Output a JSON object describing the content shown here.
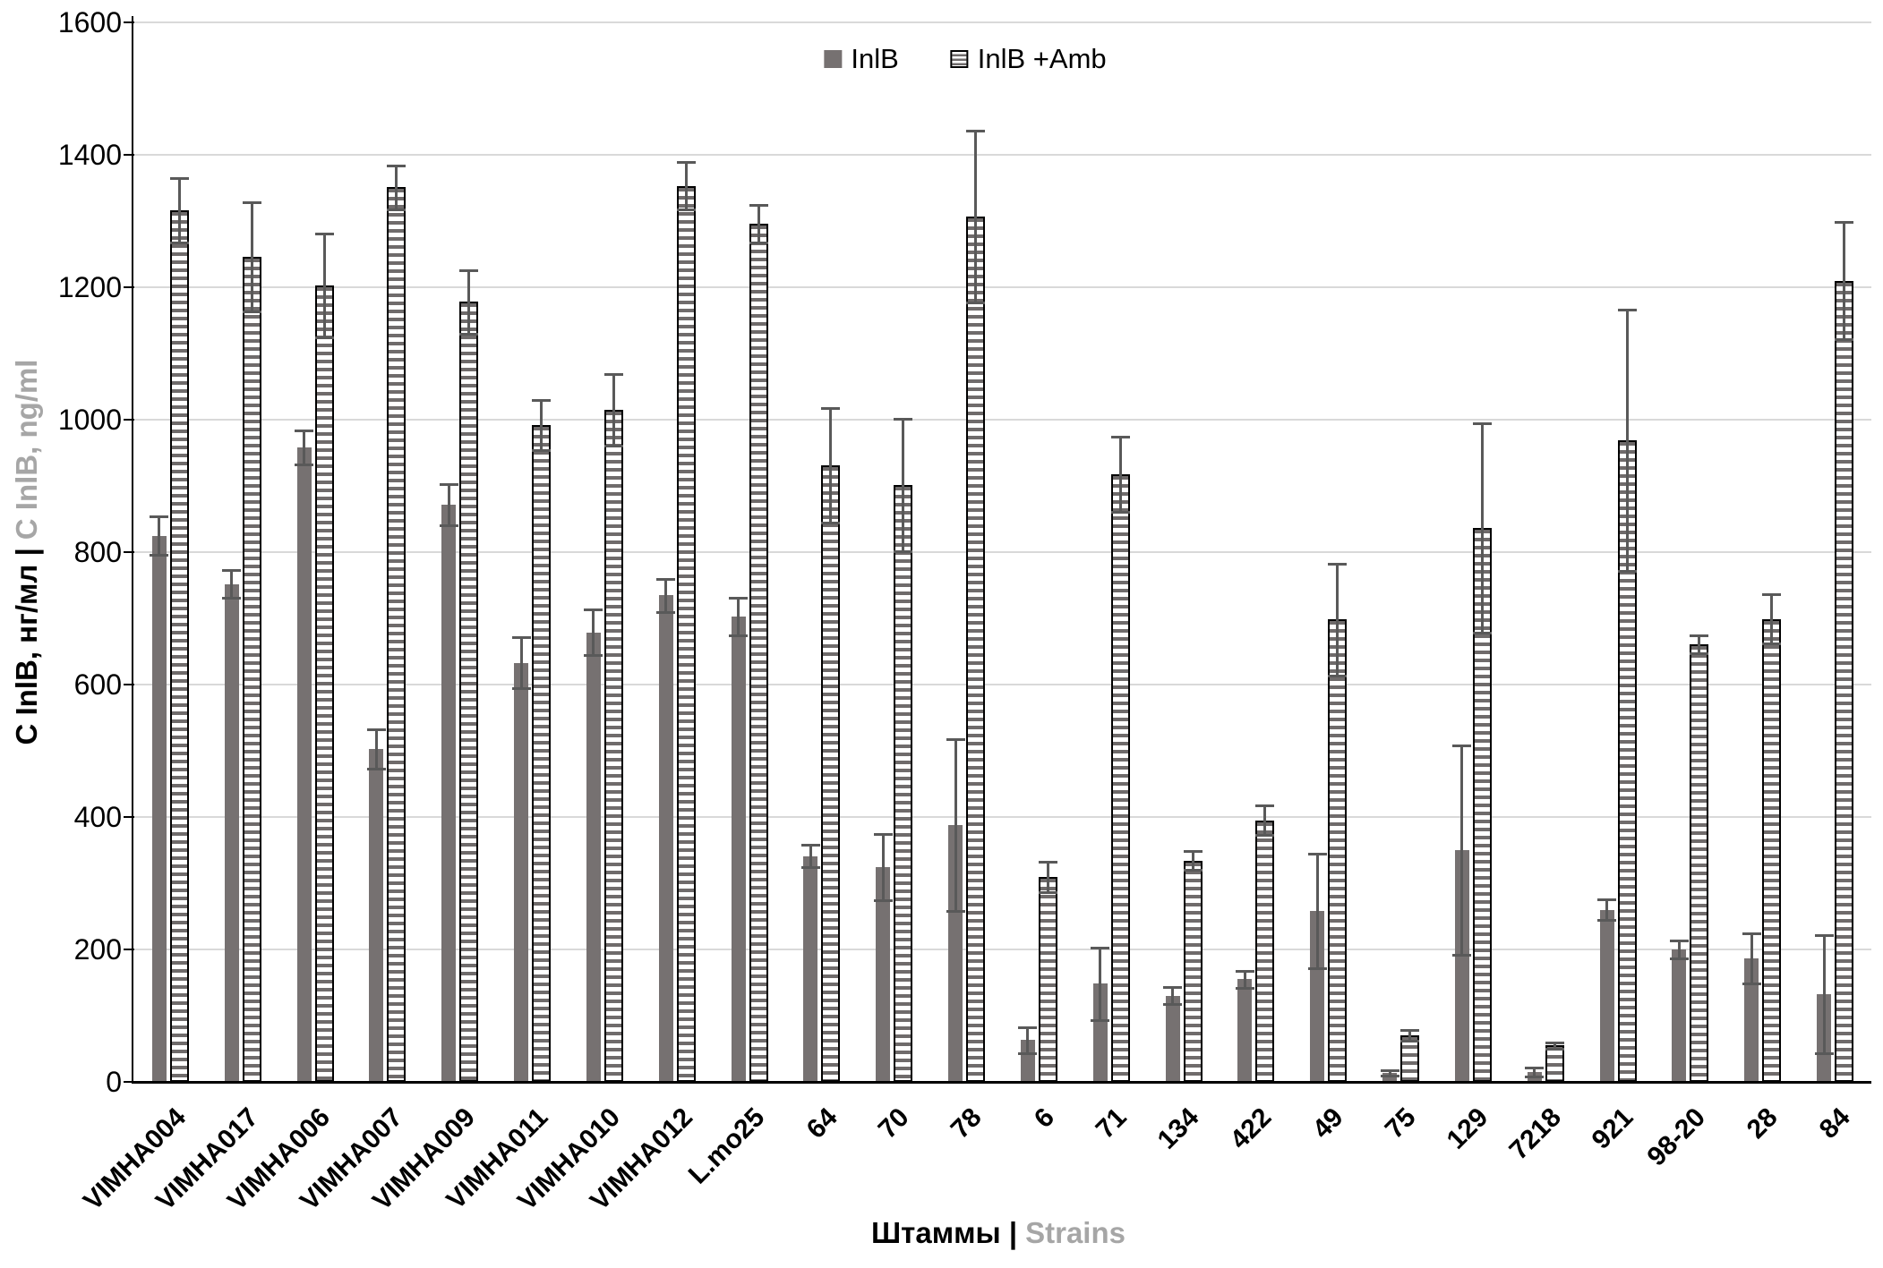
{
  "legend": {
    "items": [
      {
        "label": "InlB",
        "swatch": "solid"
      },
      {
        "label": "InlB +Amb",
        "swatch": "striped"
      }
    ]
  },
  "y_axis": {
    "title_primary": "С InlB, нг/мл |",
    "title_secondary": "C InlB, ng/ml",
    "tick_labels": [
      "0",
      "200",
      "400",
      "600",
      "800",
      "1000",
      "1200",
      "1400",
      "1600"
    ]
  },
  "x_axis": {
    "title_primary": "Штаммы |",
    "title_secondary": "Strains"
  },
  "colors": {
    "solid_bar": "#767171",
    "stripe": "#6f6b6b",
    "error_bar": "#595959",
    "gridline": "#d9d9d9",
    "secondary_text": "#a6a6a6",
    "axis": "#000000"
  },
  "chart_data": {
    "type": "bar",
    "title": "",
    "xlabel": "Штаммы | Strains",
    "ylabel": "С InlB, нг/мл | C InlB, ng/ml",
    "ylim": [
      0,
      1600
    ],
    "ytick_step": 200,
    "grid": true,
    "legend_position": "top-center",
    "categories": [
      "VIMHA004",
      "VIMHA017",
      "VIMHA006",
      "VIMHA007",
      "VIMHA009",
      "VIMHA011",
      "VIMHA010",
      "VIMHA012",
      "L.mo25",
      "64",
      "70",
      "78",
      "6",
      "71",
      "134",
      "422",
      "49",
      "75",
      "129",
      "7218",
      "921",
      "98-20",
      "28",
      "84"
    ],
    "series": [
      {
        "name": "InlB",
        "style": "solid",
        "values": [
          825,
          752,
          958,
          503,
          872,
          633,
          679,
          735,
          703,
          341,
          325,
          388,
          63,
          148,
          130,
          155,
          258,
          13,
          350,
          15,
          260,
          200,
          186,
          132
        ],
        "errors": [
          29,
          21,
          26,
          30,
          31,
          39,
          35,
          25,
          28,
          17,
          50,
          130,
          20,
          55,
          13,
          13,
          86,
          4,
          158,
          7,
          16,
          14,
          38,
          89
        ]
      },
      {
        "name": "InlB +Amb",
        "style": "striped",
        "values": [
          1316,
          1246,
          1203,
          1351,
          1178,
          992,
          1015,
          1353,
          1296,
          931,
          902,
          1307,
          310,
          918,
          334,
          395,
          698,
          70,
          836,
          55,
          969,
          661,
          699,
          1210
        ],
        "errors": [
          49,
          82,
          78,
          33,
          48,
          38,
          54,
          36,
          28,
          86,
          100,
          130,
          23,
          57,
          14,
          22,
          85,
          8,
          158,
          5,
          197,
          14,
          37,
          89
        ]
      }
    ]
  }
}
